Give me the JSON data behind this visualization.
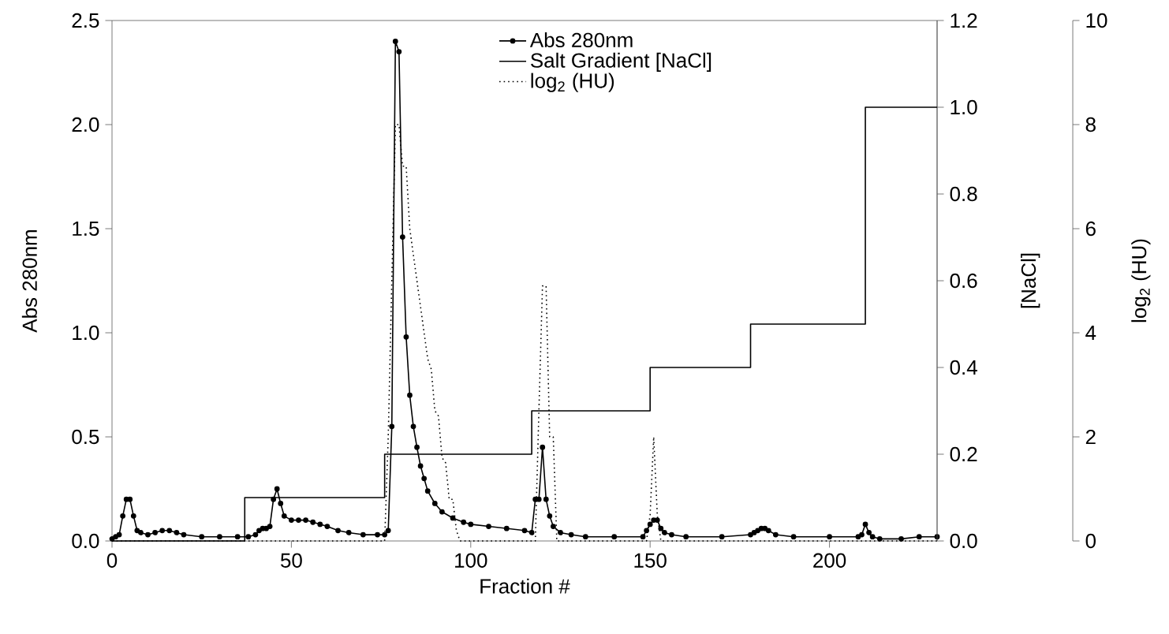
{
  "chart_data": {
    "type": "line",
    "xlabel": "Fraction #",
    "ylabel": "Abs 280nm",
    "y2label": "[NaCl]",
    "y3label": "log$_{2}$ (HU)",
    "xlim": [
      0,
      230
    ],
    "xticks": [
      0,
      50,
      100,
      150,
      200
    ],
    "ylim": [
      0,
      2.5
    ],
    "yticks": [
      {
        "value": 0,
        "label": "0.0"
      },
      {
        "value": 0.5,
        "label": "0.5"
      },
      {
        "value": 1,
        "label": "1.0"
      },
      {
        "value": 1.5,
        "label": "1.5"
      },
      {
        "value": 2,
        "label": "2.0"
      },
      {
        "value": 2.5,
        "label": "2.5"
      }
    ],
    "y2lim": [
      0,
      1.2
    ],
    "y2ticks": [
      {
        "value": 0,
        "label": "0.0"
      },
      {
        "value": 0.2,
        "label": "0.2"
      },
      {
        "value": 0.4,
        "label": "0.4"
      },
      {
        "value": 0.6,
        "label": "0.6"
      },
      {
        "value": 0.8,
        "label": "0.8"
      },
      {
        "value": 1,
        "label": "1.0"
      },
      {
        "value": 1.2,
        "label": "1.2"
      }
    ],
    "y3lim": [
      0,
      10
    ],
    "y3ticks": [
      0,
      2,
      4,
      6,
      8,
      10
    ],
    "legend": "top",
    "series": [
      {
        "name": "Abs 280nm",
        "color": "#000000",
        "marker": "circle",
        "line_style": "solid",
        "x": [
          0,
          1,
          2,
          3,
          4,
          5,
          6,
          7,
          8,
          10,
          12,
          14,
          16,
          18,
          20,
          25,
          30,
          35,
          38,
          40,
          41,
          42,
          43,
          44,
          45,
          46,
          47,
          48,
          50,
          52,
          54,
          56,
          58,
          60,
          63,
          66,
          70,
          74,
          76,
          77,
          78,
          79,
          80,
          81,
          82,
          83,
          84,
          85,
          86,
          87,
          88,
          90,
          92,
          95,
          98,
          100,
          105,
          110,
          115,
          117,
          118,
          119,
          120,
          121,
          122,
          123,
          125,
          128,
          132,
          140,
          148,
          149,
          150,
          151,
          152,
          153,
          154,
          156,
          160,
          170,
          178,
          179,
          180,
          181,
          182,
          183,
          185,
          190,
          200,
          208,
          209,
          210,
          211,
          212,
          214,
          220,
          225,
          230
        ],
        "values": [
          0.01,
          0.02,
          0.03,
          0.12,
          0.2,
          0.2,
          0.12,
          0.05,
          0.04,
          0.03,
          0.04,
          0.05,
          0.05,
          0.04,
          0.03,
          0.02,
          0.02,
          0.02,
          0.02,
          0.03,
          0.05,
          0.06,
          0.06,
          0.07,
          0.2,
          0.25,
          0.18,
          0.12,
          0.1,
          0.1,
          0.1,
          0.09,
          0.08,
          0.07,
          0.05,
          0.04,
          0.03,
          0.03,
          0.03,
          0.05,
          0.55,
          2.4,
          2.35,
          1.46,
          0.98,
          0.7,
          0.55,
          0.45,
          0.36,
          0.3,
          0.24,
          0.18,
          0.14,
          0.11,
          0.09,
          0.08,
          0.07,
          0.06,
          0.05,
          0.04,
          0.2,
          0.2,
          0.45,
          0.2,
          0.12,
          0.07,
          0.04,
          0.03,
          0.02,
          0.02,
          0.02,
          0.05,
          0.08,
          0.1,
          0.1,
          0.06,
          0.04,
          0.03,
          0.02,
          0.02,
          0.03,
          0.04,
          0.05,
          0.06,
          0.06,
          0.05,
          0.03,
          0.02,
          0.02,
          0.02,
          0.03,
          0.08,
          0.04,
          0.02,
          0.01,
          0.01,
          0.02,
          0.02
        ]
      },
      {
        "name": "Salt Gradient [NaCl]",
        "color": "#000000",
        "type": "step",
        "marker": "none",
        "line_style": "solid",
        "axis": "y2",
        "x": [
          0,
          37,
          76,
          117,
          150,
          178,
          210,
          230
        ],
        "values": [
          0,
          0.1,
          0.2,
          0.3,
          0.4,
          0.5,
          1.0,
          1.0
        ]
      },
      {
        "name": "log$_{2}$ (HU)",
        "color": "#000000",
        "marker": "none",
        "line_style": "dotted",
        "axis": "y3",
        "x": [
          0,
          76,
          77,
          78,
          79,
          80,
          81,
          82,
          83,
          84,
          85,
          86,
          87,
          88,
          89,
          90,
          91,
          92,
          93,
          94,
          95,
          96,
          97,
          118,
          119,
          120,
          121,
          122,
          123,
          124,
          149,
          150,
          151,
          152,
          153,
          230
        ],
        "values": [
          0,
          0,
          2,
          5,
          8,
          8,
          7.2,
          7.2,
          6,
          5.5,
          5,
          4.5,
          4,
          3.5,
          3.3,
          2.5,
          2.4,
          1.6,
          1.5,
          0.8,
          0.8,
          0.2,
          0,
          0,
          2.5,
          4.9,
          4.9,
          2,
          2,
          0,
          0,
          0.5,
          2,
          0.5,
          0,
          0
        ]
      }
    ]
  }
}
